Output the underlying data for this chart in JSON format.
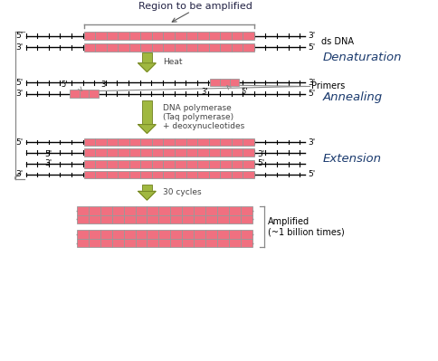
{
  "bg_color": "#ffffff",
  "pink": "#f07080",
  "line_color": "#000000",
  "arrow_green": "#a0b840",
  "arrow_green_dark": "#708020",
  "stage_color": "#1a3a6e",
  "gray_line": "#888888",
  "text_dark": "#333333",
  "title": "Region to be amplified",
  "ds_dna_label": "ds DNA",
  "denaturation_label": "Denaturation",
  "annealing_label": "Annealing",
  "primers_label": "Primers",
  "extension_label": "Extension",
  "heat_label": "Heat",
  "dna_poly_label": "DNA polymerase\n(Taq polymerase)\n+ deoxynucleotides",
  "cycles_label": "30 cycles",
  "amplified_label": "Amplified\n(~1 billion times)"
}
